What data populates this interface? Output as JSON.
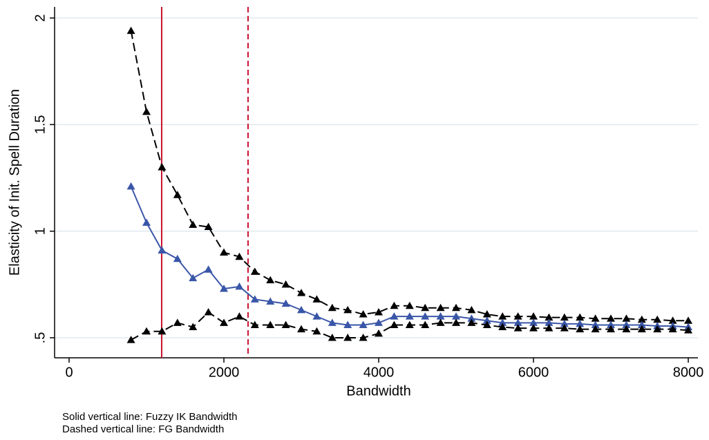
{
  "chart_data": {
    "type": "line",
    "x_label": "Bandwidth",
    "y_label": "Elasticity of Init. Spell Duration",
    "x": [
      800,
      1000,
      1200,
      1400,
      1600,
      1800,
      2000,
      2200,
      2400,
      2600,
      2800,
      3000,
      3200,
      3400,
      3600,
      3800,
      4000,
      4200,
      4400,
      4600,
      4800,
      5000,
      5200,
      5400,
      5600,
      5800,
      6000,
      6200,
      6400,
      6600,
      6800,
      7000,
      7200,
      7400,
      7600,
      7800,
      8000
    ],
    "series": [
      {
        "color": "#000000",
        "dashed": true,
        "values": [
          1.94,
          1.56,
          1.3,
          1.17,
          1.03,
          1.02,
          0.9,
          0.88,
          0.81,
          0.77,
          0.75,
          0.71,
          0.68,
          0.64,
          0.63,
          0.61,
          0.62,
          0.65,
          0.65,
          0.64,
          0.64,
          0.64,
          0.63,
          0.61,
          0.6,
          0.6,
          0.6,
          0.595,
          0.595,
          0.595,
          0.59,
          0.59,
          0.59,
          0.585,
          0.585,
          0.58,
          0.58
        ]
      },
      {
        "color": "#3a56a8",
        "dashed": false,
        "values": [
          1.21,
          1.04,
          0.91,
          0.87,
          0.78,
          0.82,
          0.73,
          0.74,
          0.68,
          0.67,
          0.66,
          0.63,
          0.6,
          0.57,
          0.56,
          0.56,
          0.57,
          0.6,
          0.6,
          0.6,
          0.6,
          0.6,
          0.59,
          0.58,
          0.57,
          0.57,
          0.57,
          0.57,
          0.565,
          0.565,
          0.56,
          0.56,
          0.56,
          0.56,
          0.555,
          0.555,
          0.55
        ]
      },
      {
        "color": "#000000",
        "dashed": true,
        "values": [
          0.49,
          0.53,
          0.53,
          0.57,
          0.55,
          0.62,
          0.57,
          0.6,
          0.56,
          0.56,
          0.56,
          0.54,
          0.53,
          0.5,
          0.5,
          0.5,
          0.52,
          0.56,
          0.56,
          0.56,
          0.57,
          0.57,
          0.57,
          0.56,
          0.55,
          0.545,
          0.545,
          0.545,
          0.545,
          0.54,
          0.54,
          0.54,
          0.54,
          0.54,
          0.54,
          0.54,
          0.535
        ]
      }
    ],
    "vlines": [
      {
        "value": 1196,
        "color": "#c8102e",
        "dashed": false
      },
      {
        "value": 2312,
        "color": "#c8102e",
        "dashed": true
      }
    ],
    "xlim": [
      -187.5,
      8125
    ],
    "ylim": [
      0.406,
      2.052
    ],
    "xticks": [
      0,
      2000,
      4000,
      6000,
      8000
    ],
    "yticks": [
      {
        "value": 0.5,
        "label": ".5"
      },
      1,
      1.5,
      2
    ],
    "grid": true,
    "grid_color": "#e0eaee",
    "notes": [
      "Solid vertical line: Fuzzy IK Bandwidth",
      "Dashed vertical line: FG Bandwidth"
    ]
  }
}
